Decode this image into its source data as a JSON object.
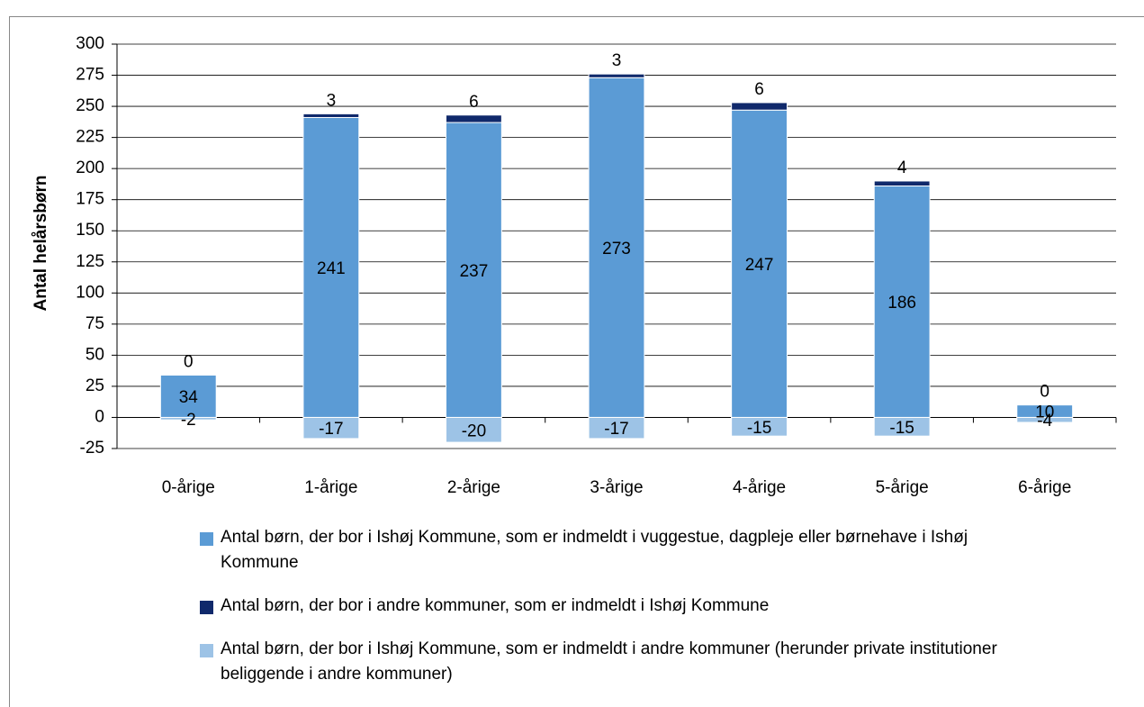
{
  "chart_data": {
    "type": "bar",
    "stacked": true,
    "y_label": "Antal helårsbørn",
    "categories": [
      "0-årige",
      "1-årige",
      "2-årige",
      "3-årige",
      "4-årige",
      "5-årige",
      "6-årige"
    ],
    "series": [
      {
        "name": "Antal børn, der bor i Ishøj Kommune, som er indmeldt i vuggestue, dagpleje eller børnehave i Ishøj Kommune",
        "color": "#5b9bd5",
        "values": [
          34,
          241,
          237,
          273,
          247,
          186,
          10
        ]
      },
      {
        "name": "Antal børn, der bor i andre kommuner, som er indmeldt i Ishøj Kommune",
        "color": "#10296b",
        "values": [
          0,
          3,
          6,
          3,
          6,
          4,
          0
        ]
      },
      {
        "name": "Antal børn, der bor i Ishøj Kommune, som er indmeldt i andre kommuner (herunder private institutioner beliggende i andre kommuner)",
        "color": "#9dc3e6",
        "values": [
          -2,
          -17,
          -20,
          -17,
          -15,
          -15,
          -4
        ]
      }
    ],
    "ylim": [
      -25,
      300
    ],
    "yticks": [
      -25,
      0,
      25,
      50,
      75,
      100,
      125,
      150,
      175,
      200,
      225,
      250,
      275,
      300
    ],
    "grid": true
  }
}
